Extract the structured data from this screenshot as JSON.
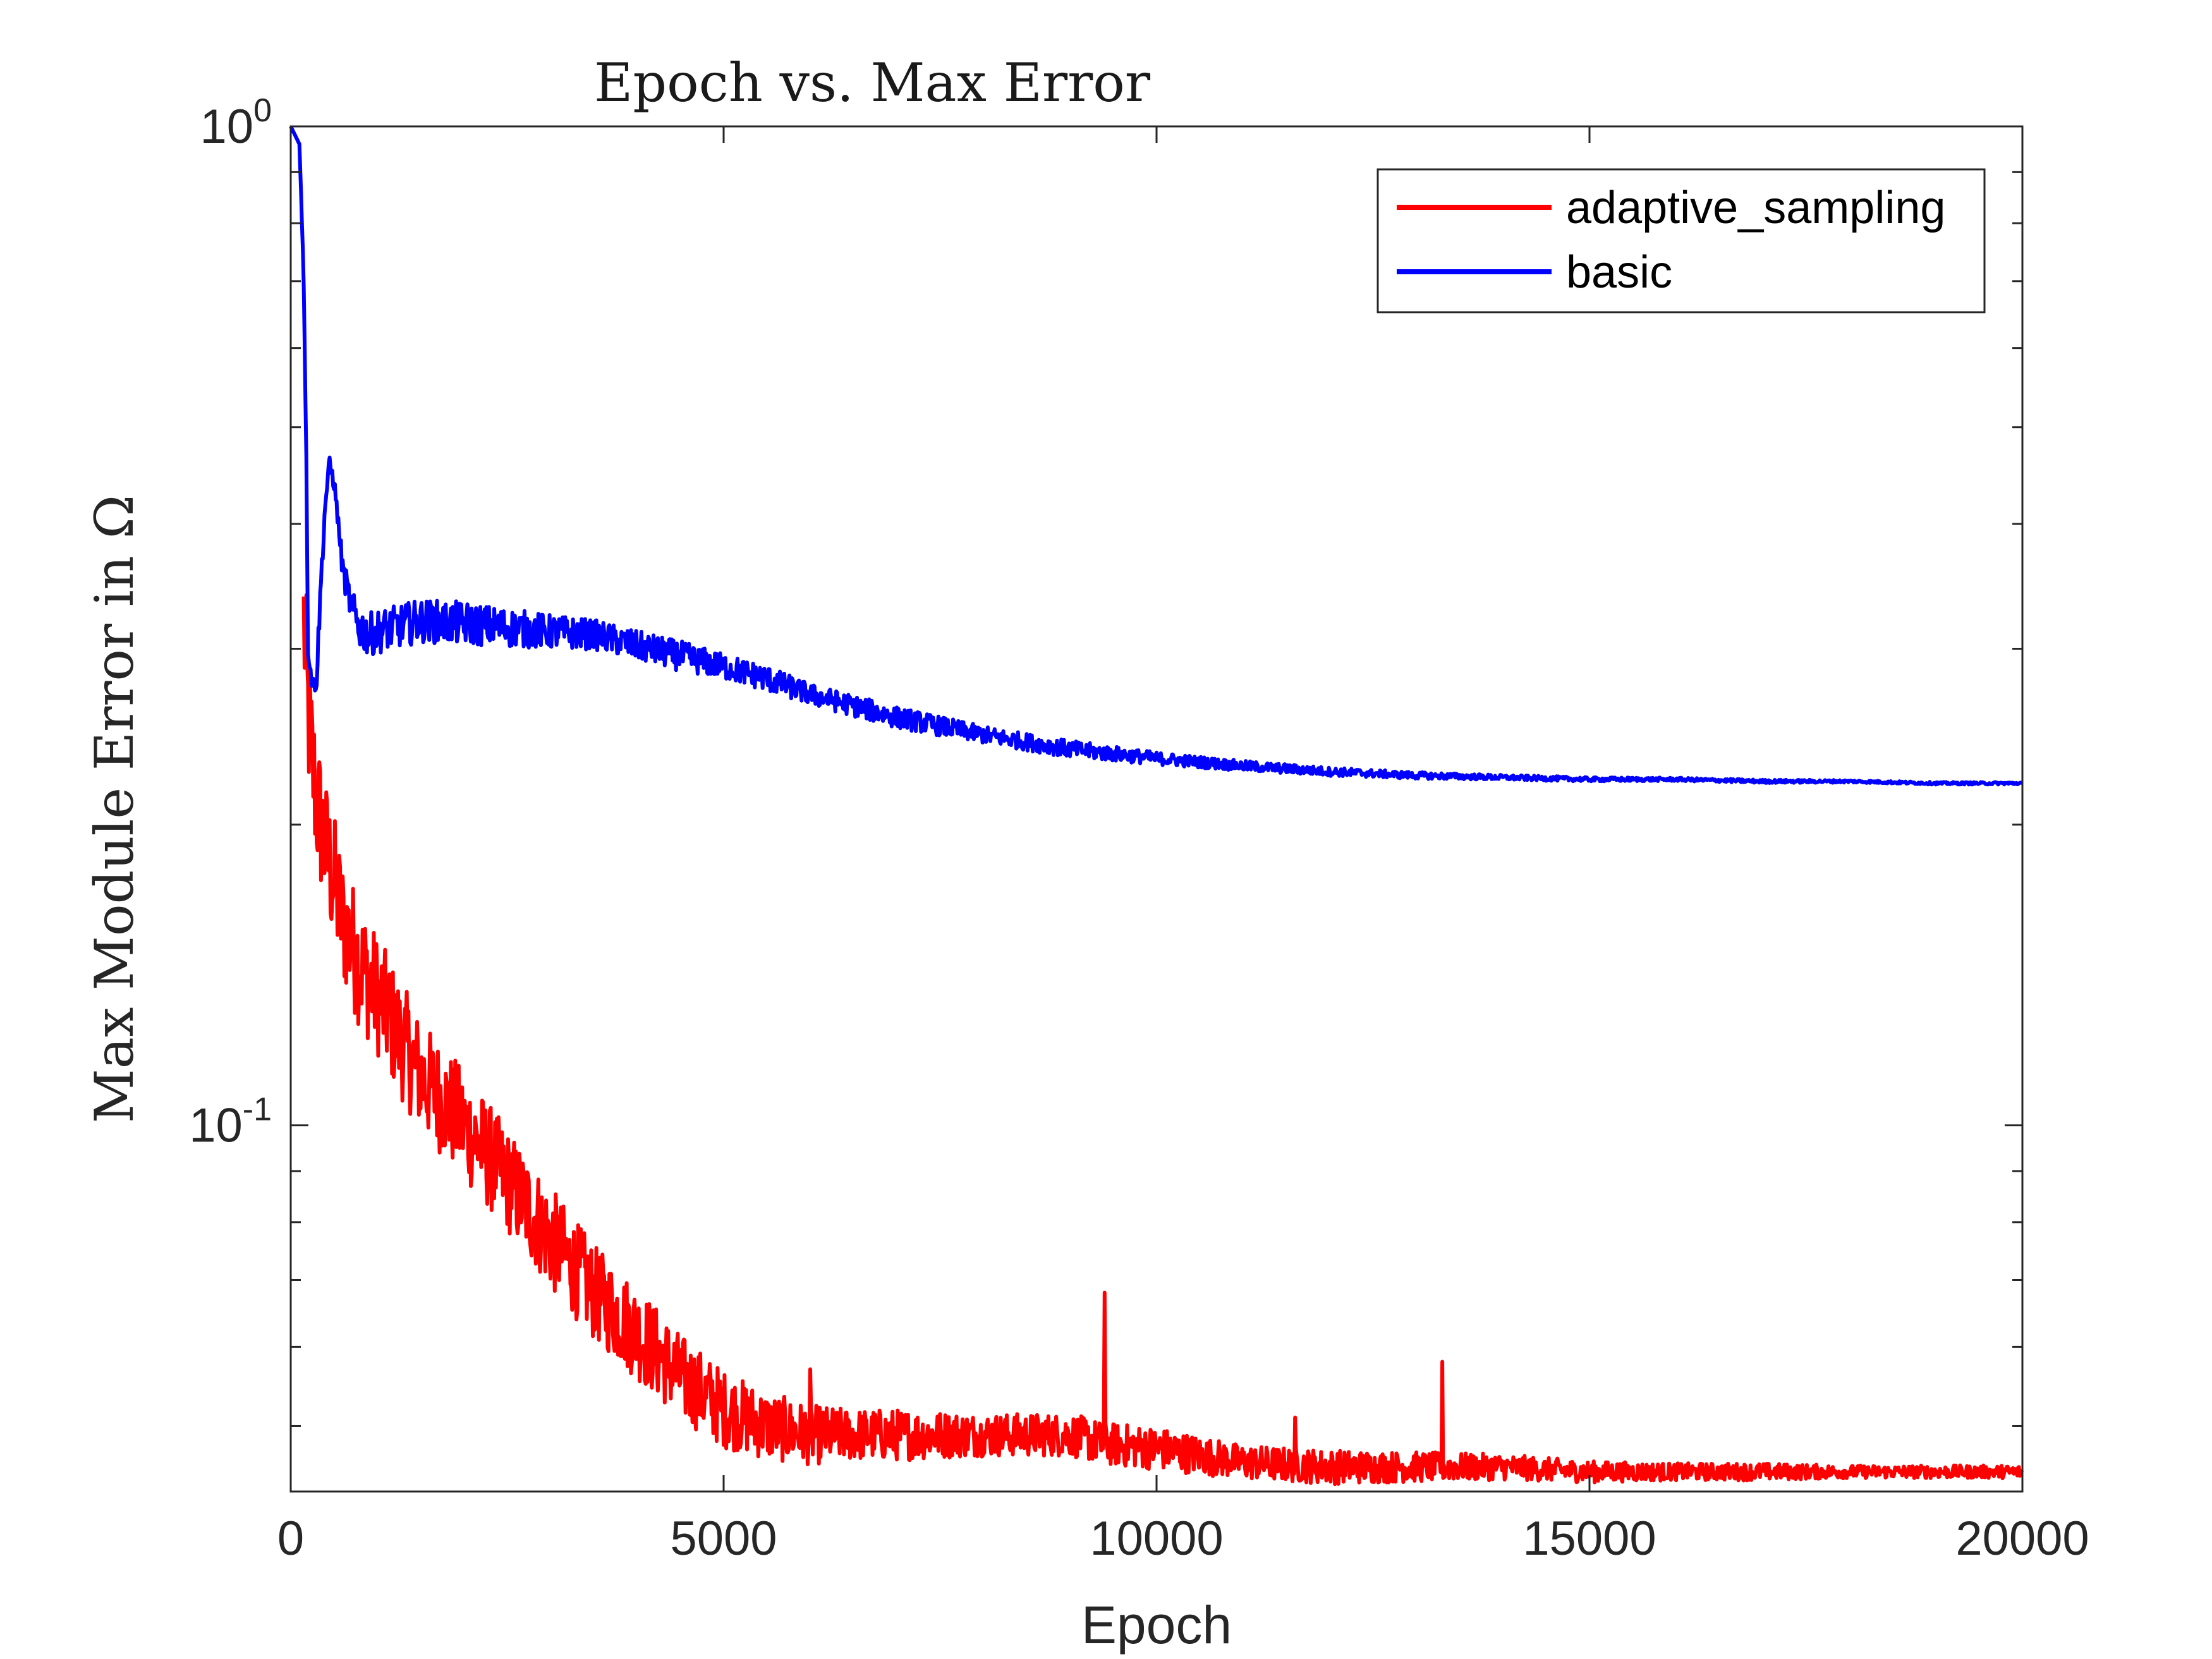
{
  "chart_data": {
    "type": "line",
    "title": "Epoch vs. Max Error",
    "xlabel": "Epoch",
    "ylabel": "Max Module Error in Ω",
    "xlim": [
      0,
      20000
    ],
    "ylim": [
      0.043,
      1.0
    ],
    "yscale": "log",
    "grid": false,
    "legend_position": "top-right",
    "x_ticks": [
      {
        "value": 0,
        "label": "0"
      },
      {
        "value": 5000,
        "label": "5000"
      },
      {
        "value": 10000,
        "label": "10000"
      },
      {
        "value": 15000,
        "label": "15000"
      },
      {
        "value": 20000,
        "label": "20000"
      }
    ],
    "y_ticks": [
      {
        "value": 1.0,
        "base": "10",
        "exponent": "0"
      },
      {
        "value": 0.1,
        "base": "10",
        "exponent": "-1"
      }
    ],
    "series": [
      {
        "name": "adaptive_sampling",
        "color": "#ff0000",
        "x": [
          150,
          200,
          250,
          300,
          400,
          500,
          600,
          800,
          1000,
          1200,
          1500,
          2000,
          2500,
          3000,
          3500,
          4000,
          4500,
          5000,
          5500,
          6000,
          6500,
          7000,
          8000,
          9000,
          9400,
          10000,
          11000,
          12000,
          13000,
          14000,
          15000,
          16000,
          17000,
          18000,
          19000,
          20000
        ],
        "values": [
          0.32,
          0.26,
          0.23,
          0.21,
          0.19,
          0.175,
          0.16,
          0.145,
          0.135,
          0.125,
          0.112,
          0.1,
          0.088,
          0.077,
          0.068,
          0.062,
          0.056,
          0.052,
          0.05,
          0.049,
          0.049,
          0.049,
          0.049,
          0.049,
          0.048,
          0.0475,
          0.046,
          0.0455,
          0.0455,
          0.0455,
          0.045,
          0.045,
          0.045,
          0.045,
          0.045,
          0.045
        ],
        "noise": [
          0.18,
          0.18,
          0.18,
          0.17,
          0.16,
          0.16,
          0.15,
          0.15,
          0.14,
          0.14,
          0.13,
          0.13,
          0.12,
          0.12,
          0.11,
          0.11,
          0.1,
          0.09,
          0.08,
          0.07,
          0.06,
          0.06,
          0.05,
          0.05,
          0.05,
          0.05,
          0.04,
          0.04,
          0.035,
          0.03,
          0.025,
          0.02,
          0.02,
          0.015,
          0.015,
          0.015
        ],
        "spikes": [
          {
            "x": 9400,
            "value": 0.068
          },
          {
            "x": 13300,
            "value": 0.058
          },
          {
            "x": 11600,
            "value": 0.051
          },
          {
            "x": 6000,
            "value": 0.057
          }
        ]
      },
      {
        "name": "basic",
        "color": "#0000ff",
        "x": [
          0,
          100,
          150,
          200,
          250,
          300,
          350,
          400,
          450,
          500,
          550,
          600,
          700,
          800,
          900,
          1000,
          1200,
          1500,
          2000,
          2500,
          3000,
          3500,
          4000,
          4500,
          5000,
          5500,
          6000,
          6500,
          7000,
          8000,
          9000,
          10000,
          11000,
          12000,
          13000,
          14000,
          15000,
          16000,
          17000,
          18000,
          19000,
          20000
        ],
        "values": [
          1.0,
          0.96,
          0.7,
          0.3,
          0.275,
          0.28,
          0.35,
          0.42,
          0.46,
          0.44,
          0.4,
          0.36,
          0.33,
          0.315,
          0.31,
          0.312,
          0.315,
          0.32,
          0.318,
          0.315,
          0.312,
          0.31,
          0.302,
          0.295,
          0.288,
          0.28,
          0.27,
          0.263,
          0.256,
          0.246,
          0.238,
          0.233,
          0.229,
          0.226,
          0.224,
          0.223,
          0.222,
          0.222,
          0.221,
          0.221,
          0.22,
          0.22
        ],
        "noise": [
          0.0,
          0.0,
          0.02,
          0.02,
          0.02,
          0.03,
          0.03,
          0.02,
          0.02,
          0.02,
          0.02,
          0.03,
          0.04,
          0.05,
          0.05,
          0.05,
          0.05,
          0.05,
          0.05,
          0.045,
          0.04,
          0.035,
          0.035,
          0.035,
          0.03,
          0.03,
          0.025,
          0.025,
          0.025,
          0.02,
          0.02,
          0.015,
          0.012,
          0.01,
          0.008,
          0.006,
          0.005,
          0.004,
          0.004,
          0.003,
          0.003,
          0.003
        ]
      }
    ]
  }
}
